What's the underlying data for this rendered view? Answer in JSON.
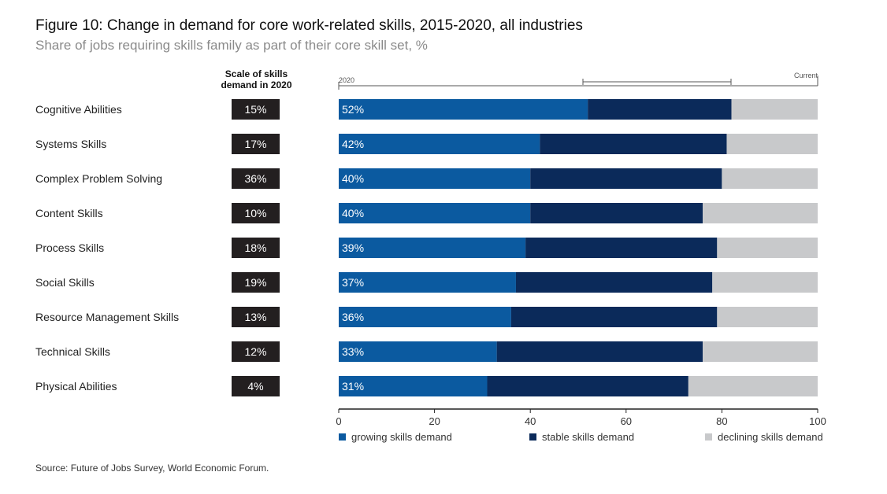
{
  "header": {
    "title": "Figure 10: Change in demand for core work-related skills, 2015-2020, all industries",
    "subtitle": "Share of jobs requiring skills family as part of their core skill set, %"
  },
  "scale_header": {
    "line1": "Scale of skills",
    "line2": "demand in 2020"
  },
  "timeline": {
    "left_label": "2020",
    "right_label": "Current"
  },
  "source": "Source: Future of Jobs Survey, World Economic Forum.",
  "colors": {
    "growing": "#0b5aa0",
    "stable": "#0b2a5a",
    "declining": "#c8c9cb",
    "badge": "#231f20"
  },
  "chart_data": {
    "type": "bar",
    "orientation": "horizontal",
    "stacked": true,
    "categories": [
      "Cognitive Abilities",
      "Systems Skills",
      "Complex Problem Solving",
      "Content Skills",
      "Process Skills",
      "Social Skills",
      "Resource Management Skills",
      "Technical Skills",
      "Physical Abilities"
    ],
    "scale_of_demand": [
      "15%",
      "17%",
      "36%",
      "10%",
      "18%",
      "19%",
      "13%",
      "12%",
      "4%"
    ],
    "series": [
      {
        "name": "growing skills demand",
        "values": [
          52,
          42,
          40,
          40,
          39,
          37,
          36,
          33,
          31
        ]
      },
      {
        "name": "stable skills demand",
        "values": [
          30,
          39,
          40,
          36,
          40,
          41,
          43,
          43,
          42
        ]
      },
      {
        "name": "declining skills demand",
        "values": [
          18,
          19,
          20,
          24,
          21,
          22,
          21,
          24,
          27
        ]
      }
    ],
    "data_labels": [
      "52%",
      "42%",
      "40%",
      "40%",
      "39%",
      "37%",
      "36%",
      "33%",
      "31%"
    ],
    "xlim": [
      0,
      100
    ],
    "xticks": [
      0,
      20,
      40,
      60,
      80,
      100
    ],
    "legend_position": "bottom",
    "grid": false
  }
}
